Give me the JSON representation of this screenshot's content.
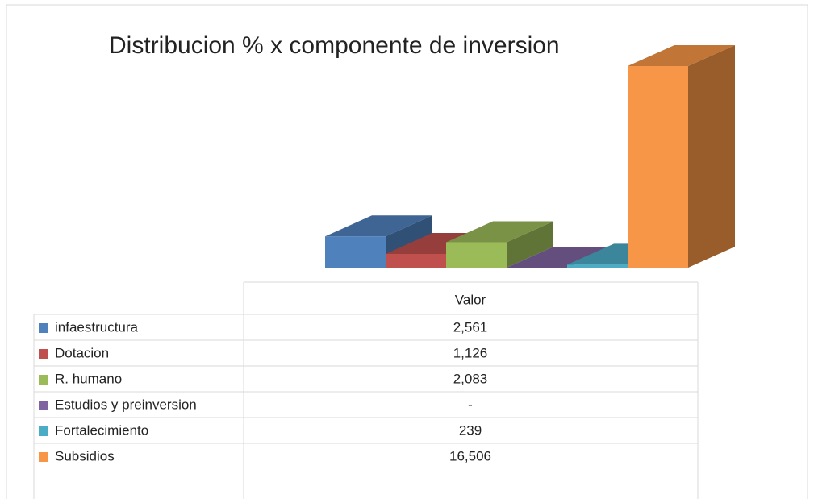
{
  "chart_data": {
    "type": "bar",
    "title": "Distribucion % x componente de inversion",
    "categories": [
      "infaestructura",
      "Dotacion",
      "R. humano",
      "Estudios y preinversion",
      "Fortalecimiento",
      "Subsidios"
    ],
    "series": [
      {
        "name": "Valor",
        "values": [
          2561,
          1126,
          2083,
          0,
          239,
          16506
        ],
        "value_labels": [
          "2,561",
          "1,126",
          "2,083",
          "-",
          "239",
          "16,506"
        ]
      }
    ],
    "colors": [
      "#4f81bd",
      "#c0504d",
      "#9bbb59",
      "#8064a2",
      "#4bacc6",
      "#f79646"
    ]
  }
}
